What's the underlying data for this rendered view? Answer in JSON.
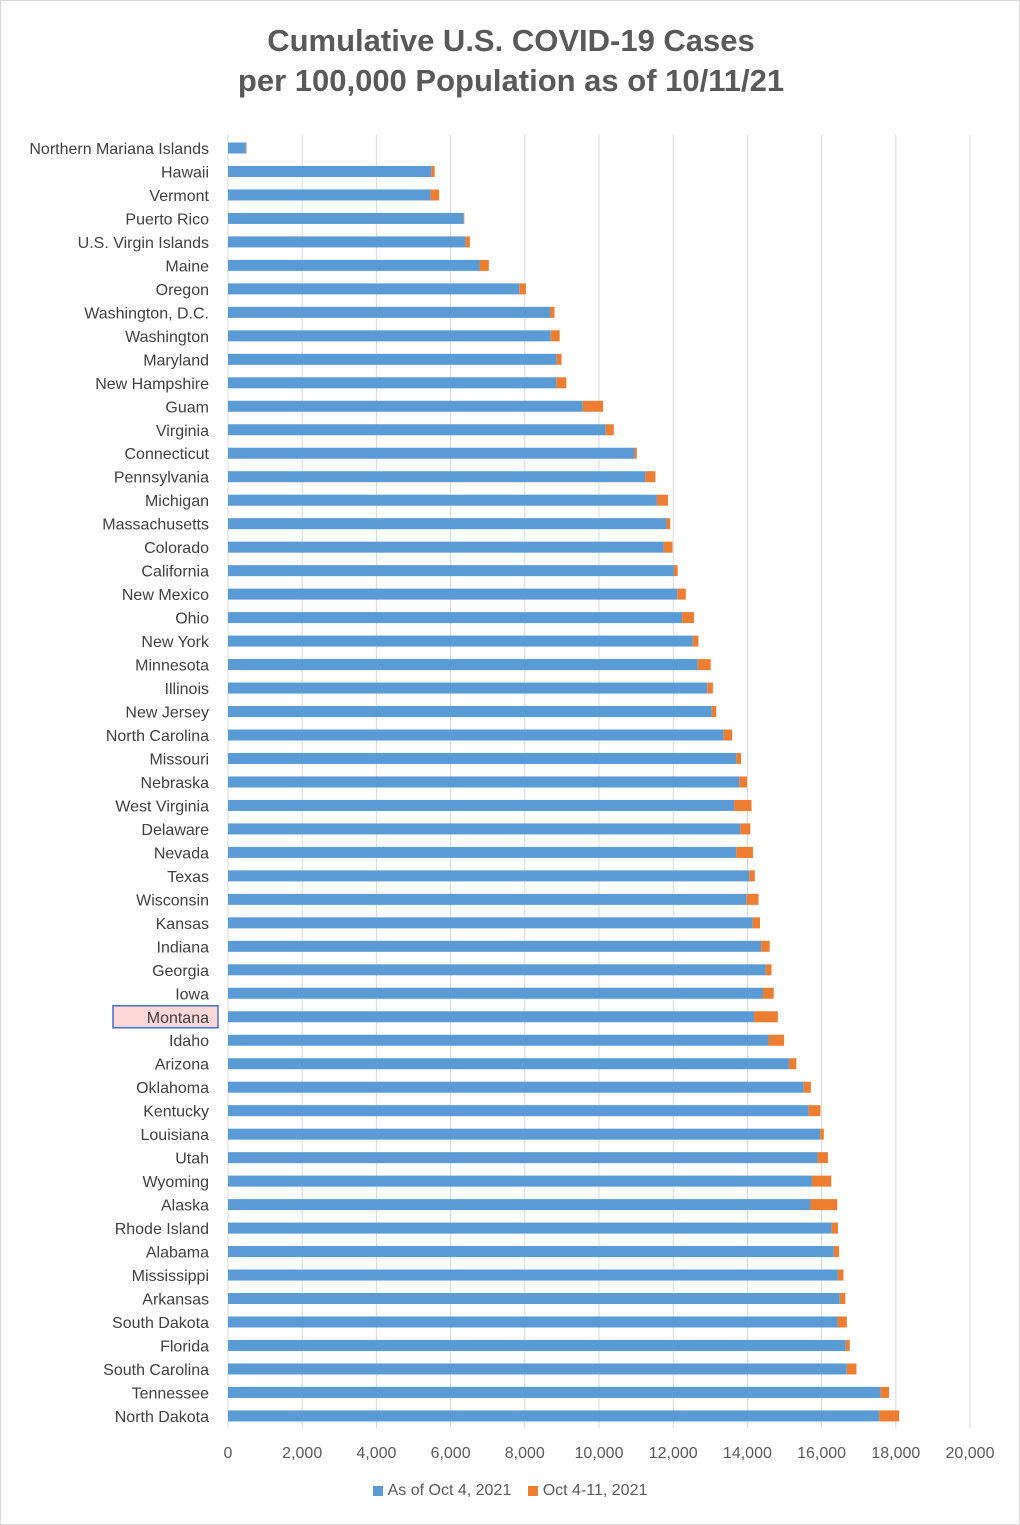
{
  "chart_data": {
    "type": "bar",
    "orientation": "horizontal",
    "stacked": true,
    "title_line1": "Cumulative U.S. COVID-19 Cases",
    "title_line2": "per 100,000 Population as of 10/11/21",
    "xlim": [
      0,
      20000
    ],
    "xticks": [
      "0",
      "2,000",
      "4,000",
      "6,000",
      "8,000",
      "10,000",
      "12,000",
      "14,000",
      "16,000",
      "18,000",
      "20,000"
    ],
    "xtick_values": [
      0,
      2000,
      4000,
      6000,
      8000,
      10000,
      12000,
      14000,
      16000,
      18000,
      20000
    ],
    "grid": "vertical",
    "legend_position": "bottom",
    "highlighted_category": "Montana",
    "colors": {
      "base": "#5b9bd5",
      "increment": "#ed7d31",
      "highlight_fill": "#ffd7d7",
      "highlight_border": "#4472c4",
      "grid": "#d9d9d9"
    },
    "categories": [
      "Northern Mariana Islands",
      "Hawaii",
      "Vermont",
      "Puerto Rico",
      "U.S. Virgin Islands",
      "Maine",
      "Oregon",
      "Washington, D.C.",
      "Washington",
      "Maryland",
      "New Hampshire",
      "Guam",
      "Virginia",
      "Connecticut",
      "Pennsylvania",
      "Michigan",
      "Massachusetts",
      "Colorado",
      "California",
      "New Mexico",
      "Ohio",
      "New York",
      "Minnesota",
      "Illinois",
      "New Jersey",
      "North Carolina",
      "Missouri",
      "Nebraska",
      "West Virginia",
      "Delaware",
      "Nevada",
      "Texas",
      "Wisconsin",
      "Kansas",
      "Indiana",
      "Georgia",
      "Iowa",
      "Montana",
      "Idaho",
      "Arizona",
      "Oklahoma",
      "Kentucky",
      "Louisiana",
      "Utah",
      "Wyoming",
      "Alaska",
      "Rhode Island",
      "Alabama",
      "Mississippi",
      "Arkansas",
      "South Dakota",
      "Florida",
      "South Carolina",
      "Tennessee",
      "North Dakota"
    ],
    "series": [
      {
        "name": "As of Oct 4, 2021",
        "values": [
          480,
          5480,
          5460,
          6350,
          6400,
          6780,
          7850,
          8680,
          8700,
          8860,
          8850,
          9560,
          10180,
          10960,
          11250,
          11560,
          11820,
          11740,
          12020,
          12110,
          12240,
          12530,
          12660,
          12920,
          13040,
          13360,
          13700,
          13780,
          13640,
          13810,
          13700,
          14050,
          13980,
          14140,
          14370,
          14490,
          14420,
          14180,
          14570,
          15120,
          15520,
          15650,
          15960,
          15890,
          15740,
          15700,
          16270,
          16330,
          16440,
          16490,
          16430,
          16650,
          16680,
          17590,
          17550
        ]
      },
      {
        "name": "Oct 4-11, 2021",
        "values": [
          20,
          90,
          230,
          20,
          120,
          250,
          180,
          120,
          240,
          130,
          270,
          550,
          220,
          60,
          270,
          300,
          100,
          240,
          100,
          230,
          320,
          150,
          350,
          150,
          120,
          230,
          130,
          210,
          470,
          270,
          450,
          150,
          320,
          200,
          230,
          160,
          290,
          640,
          420,
          200,
          190,
          320,
          100,
          280,
          520,
          720,
          170,
          140,
          150,
          150,
          250,
          110,
          260,
          230,
          540
        ]
      }
    ]
  }
}
